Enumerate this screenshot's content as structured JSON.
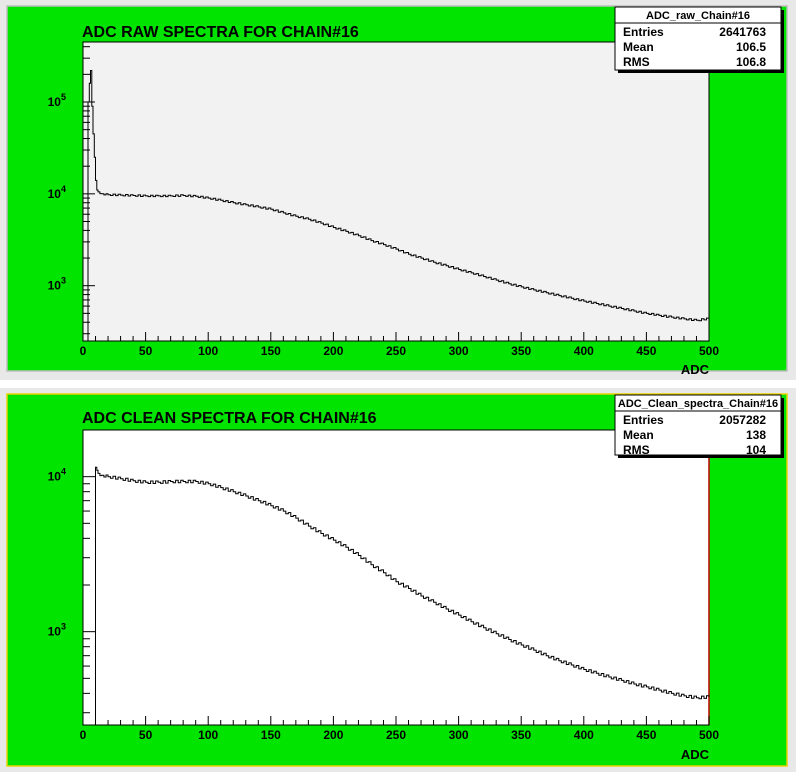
{
  "chart_data": [
    {
      "type": "line",
      "title": "ADC RAW SPECTRA FOR CHAIN#16",
      "xlabel": "ADC",
      "ylabel": "",
      "xlim": [
        0,
        500
      ],
      "yscale": "log",
      "ylim": [
        250,
        450000
      ],
      "x_ticks": [
        "0",
        "50",
        "100",
        "150",
        "200",
        "250",
        "300",
        "350",
        "400",
        "450",
        "500"
      ],
      "y_ticks": [
        {
          "base": "10",
          "exp": "3",
          "value": 1000
        },
        {
          "base": "10",
          "exp": "4",
          "value": 10000
        },
        {
          "base": "10",
          "exp": "5",
          "value": 100000
        }
      ],
      "stats": {
        "name": "ADC_raw_Chain#16",
        "rows": [
          {
            "label": "Entries",
            "value": "2641763"
          },
          {
            "label": "Mean",
            "value": "106.5"
          },
          {
            "label": "RMS",
            "value": "106.8"
          }
        ]
      },
      "series": [
        {
          "x": [
            4,
            5,
            6,
            7,
            8,
            9,
            10,
            11,
            12,
            15,
            20,
            30,
            40,
            50,
            60,
            70,
            80,
            90,
            100,
            110,
            120,
            130,
            140,
            150,
            160,
            170,
            180,
            190,
            200,
            210,
            220,
            230,
            240,
            250,
            260,
            270,
            280,
            290,
            300,
            310,
            320,
            330,
            340,
            350,
            360,
            370,
            380,
            390,
            400,
            410,
            420,
            430,
            440,
            450,
            460,
            470,
            480,
            490,
            500
          ],
          "y": [
            100000,
            160000,
            220000,
            90000,
            45000,
            25000,
            14000,
            11000,
            10500,
            10000,
            9800,
            9700,
            9600,
            9500,
            9500,
            9500,
            9600,
            9400,
            9000,
            8500,
            8000,
            7600,
            7200,
            6800,
            6200,
            5700,
            5300,
            4800,
            4300,
            3900,
            3500,
            3100,
            2800,
            2500,
            2200,
            2000,
            1800,
            1650,
            1500,
            1380,
            1260,
            1150,
            1050,
            970,
            900,
            840,
            780,
            730,
            680,
            640,
            600,
            565,
            530,
            500,
            475,
            455,
            435,
            420,
            440
          ]
        }
      ]
    },
    {
      "type": "line",
      "title": "ADC CLEAN SPECTRA FOR CHAIN#16",
      "xlabel": "ADC",
      "ylabel": "",
      "xlim": [
        0,
        500
      ],
      "yscale": "log",
      "ylim": [
        250,
        20000
      ],
      "x_ticks": [
        "0",
        "50",
        "100",
        "150",
        "200",
        "250",
        "300",
        "350",
        "400",
        "450",
        "500"
      ],
      "y_ticks": [
        {
          "base": "10",
          "exp": "3",
          "value": 1000
        },
        {
          "base": "10",
          "exp": "4",
          "value": 10000
        }
      ],
      "stats": {
        "name": "ADC_Clean_spectra_Chain#16",
        "rows": [
          {
            "label": "Entries",
            "value": "2057282"
          },
          {
            "label": "Mean",
            "value": "138"
          },
          {
            "label": "RMS",
            "value": "104"
          }
        ]
      },
      "series": [
        {
          "x": [
            10,
            11,
            12,
            15,
            20,
            30,
            40,
            50,
            60,
            70,
            80,
            90,
            100,
            110,
            120,
            130,
            140,
            150,
            160,
            170,
            180,
            190,
            200,
            210,
            220,
            230,
            240,
            250,
            260,
            270,
            280,
            290,
            300,
            310,
            320,
            330,
            340,
            350,
            360,
            370,
            380,
            390,
            400,
            410,
            420,
            430,
            440,
            450,
            460,
            470,
            480,
            490,
            500
          ],
          "y": [
            11500,
            11000,
            10500,
            10200,
            10000,
            9700,
            9400,
            9200,
            9200,
            9300,
            9300,
            9300,
            9000,
            8500,
            8000,
            7500,
            7000,
            6500,
            6000,
            5400,
            4800,
            4300,
            3900,
            3500,
            3100,
            2700,
            2400,
            2100,
            1900,
            1700,
            1550,
            1400,
            1280,
            1160,
            1060,
            970,
            890,
            820,
            760,
            700,
            650,
            610,
            570,
            540,
            510,
            485,
            460,
            440,
            420,
            400,
            385,
            375,
            380
          ]
        }
      ]
    }
  ]
}
